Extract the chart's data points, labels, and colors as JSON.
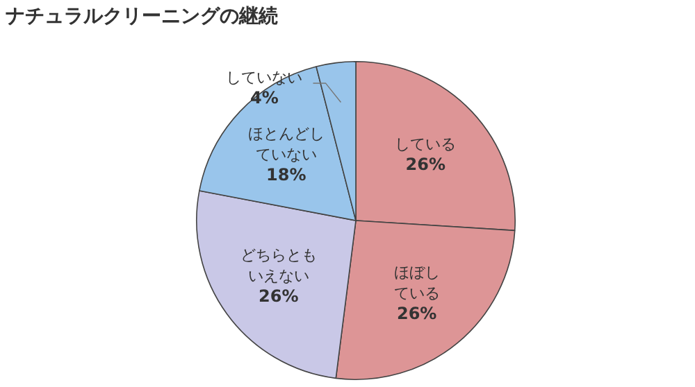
{
  "chart_data": {
    "type": "pie",
    "title": "ナチュラルクリーニングの継続",
    "categories": [
      "している",
      "ほぼしている",
      "どちらともいえない",
      "ほとんどしていない",
      "していない"
    ],
    "values": [
      26,
      26,
      26,
      18,
      4
    ],
    "colors": [
      "#dd9596",
      "#dd9596",
      "#c9c8e7",
      "#99c5eb",
      "#99c5eb"
    ],
    "value_labels": [
      "26%",
      "26%",
      "26%",
      "18%",
      "4%"
    ],
    "legend": false
  }
}
